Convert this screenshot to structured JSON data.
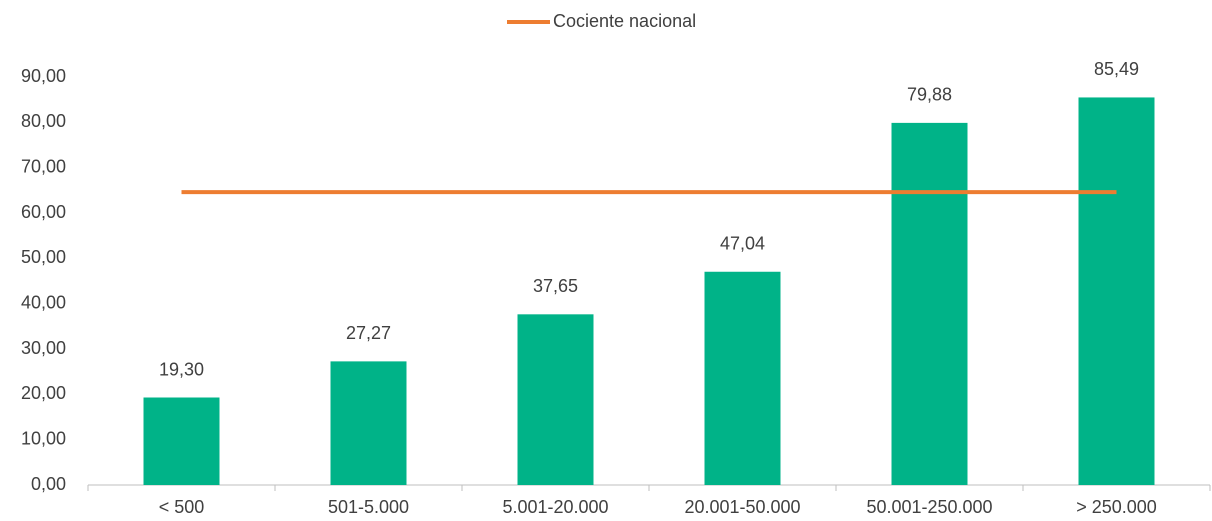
{
  "chart_data": {
    "type": "bar",
    "categories": [
      "< 500",
      "501-5.000",
      "5.001-20.000",
      "20.001-50.000",
      "50.001-250.000",
      "> 250.000"
    ],
    "series": [
      {
        "type": "bar",
        "color": "#00b388",
        "values": [
          19.3,
          27.27,
          37.65,
          47.04,
          79.88,
          85.49
        ],
        "value_labels": [
          "19,30",
          "27,27",
          "37,65",
          "47,04",
          "79,88",
          "85,49"
        ]
      },
      {
        "type": "line",
        "name": "Cociente nacional",
        "color": "#ed7d31",
        "values": [
          64.6,
          64.6,
          64.6,
          64.6,
          64.6,
          64.6
        ]
      }
    ],
    "ylim": [
      0,
      90
    ],
    "yticks": [
      {
        "value": 0,
        "label": "0,00"
      },
      {
        "value": 10,
        "label": "10,00"
      },
      {
        "value": 20,
        "label": "20,00"
      },
      {
        "value": 30,
        "label": "30,00"
      },
      {
        "value": 40,
        "label": "40,00"
      },
      {
        "value": 50,
        "label": "50,00"
      },
      {
        "value": 60,
        "label": "60,00"
      },
      {
        "value": 70,
        "label": "70,00"
      },
      {
        "value": 80,
        "label": "80,00"
      },
      {
        "value": 90,
        "label": "90,00"
      }
    ],
    "legend": "top"
  }
}
